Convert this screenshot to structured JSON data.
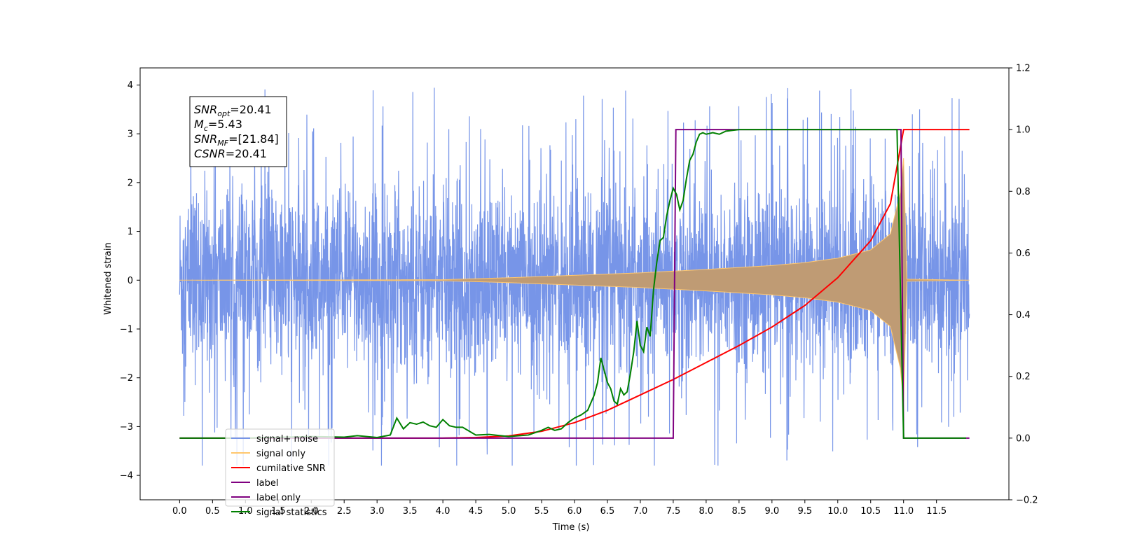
{
  "chart_data": {
    "type": "line",
    "title": "",
    "xlabel": "Time (s)",
    "ylabel": "Whitened strain",
    "y2label": "",
    "xlim": [
      -0.6,
      12.6
    ],
    "ylim": [
      -4.5,
      4.35
    ],
    "y2lim": [
      -0.2,
      1.2
    ],
    "xticks": [
      "0.0",
      "0.5",
      "1.0",
      "1.5",
      "2.0",
      "2.5",
      "3.0",
      "3.5",
      "4.0",
      "4.5",
      "5.0",
      "5.5",
      "6.0",
      "6.5",
      "7.0",
      "7.5",
      "8.0",
      "8.5",
      "9.0",
      "9.5",
      "10.0",
      "10.5",
      "11.0",
      "11.5"
    ],
    "yticks": [
      "4",
      "3",
      "2",
      "1",
      "0",
      "−1",
      "−2",
      "−3",
      "−4"
    ],
    "y2ticks": [
      "1.2",
      "1.0",
      "0.8",
      "0.6",
      "0.4",
      "0.2",
      "0.0",
      "−0.2"
    ],
    "grid": false,
    "legend_position": "bottom-left",
    "stats_box": {
      "lines": [
        {
          "sym": "SNR",
          "sub": "opt",
          "val": "=20.41"
        },
        {
          "sym": "M",
          "sub": "c",
          "val": "=5.43"
        },
        {
          "sym": "SNR",
          "sub": "MF",
          "val": "=[21.84]"
        },
        {
          "sym": "CSNR",
          "sub": "",
          "val": "=20.41"
        }
      ]
    },
    "series": [
      {
        "name": "signal+ noise",
        "axis": "left",
        "color": "#7795e8",
        "x_range": [
          0.0,
          12.0
        ],
        "noise_envelope": {
          "std": 0.95,
          "peak_min": -3.8,
          "peak_max": 3.95
        },
        "chirp_merger_time": 11.0
      },
      {
        "name": "signal only",
        "axis": "left",
        "color": "#ffc76e",
        "x_range": [
          0.0,
          12.0
        ],
        "amplitude_envelope": [
          [
            0.0,
            0.0
          ],
          [
            4.0,
            0.01
          ],
          [
            5.0,
            0.05
          ],
          [
            6.0,
            0.1
          ],
          [
            7.0,
            0.15
          ],
          [
            8.0,
            0.22
          ],
          [
            9.0,
            0.3
          ],
          [
            9.5,
            0.36
          ],
          [
            10.0,
            0.45
          ],
          [
            10.5,
            0.62
          ],
          [
            10.8,
            0.95
          ],
          [
            10.95,
            1.8
          ],
          [
            11.0,
            2.5
          ],
          [
            11.05,
            0.02
          ],
          [
            12.0,
            0.0
          ]
        ]
      },
      {
        "name": "cumilative SNR",
        "axis": "right",
        "color": "#ff0000",
        "x": [
          0.0,
          3.0,
          4.0,
          4.5,
          5.0,
          5.5,
          6.0,
          6.5,
          7.0,
          7.5,
          8.0,
          8.5,
          9.0,
          9.5,
          10.0,
          10.5,
          10.8,
          11.0,
          12.0
        ],
        "y": [
          0.0,
          0.0,
          0.0,
          0.002,
          0.007,
          0.022,
          0.05,
          0.09,
          0.14,
          0.19,
          0.245,
          0.3,
          0.36,
          0.43,
          0.52,
          0.64,
          0.76,
          1.0,
          1.0
        ]
      },
      {
        "name": "label only",
        "axis": "right",
        "color": "#800080",
        "x": [
          0.0,
          7.5,
          7.54,
          10.96,
          11.0,
          12.0
        ],
        "y": [
          0.0,
          0.0,
          1.0,
          1.0,
          0.0,
          0.0
        ]
      },
      {
        "name": "signal statistics",
        "axis": "right",
        "color": "#008000",
        "x": [
          0.0,
          1.0,
          2.0,
          2.5,
          2.7,
          3.0,
          3.2,
          3.3,
          3.4,
          3.5,
          3.6,
          3.7,
          3.8,
          3.9,
          4.0,
          4.1,
          4.2,
          4.3,
          4.5,
          4.7,
          5.0,
          5.3,
          5.5,
          5.6,
          5.7,
          5.8,
          5.9,
          6.0,
          6.1,
          6.2,
          6.3,
          6.35,
          6.4,
          6.45,
          6.5,
          6.55,
          6.6,
          6.65,
          6.7,
          6.75,
          6.8,
          6.85,
          6.9,
          6.95,
          7.0,
          7.05,
          7.1,
          7.15,
          7.2,
          7.25,
          7.3,
          7.35,
          7.4,
          7.45,
          7.5,
          7.55,
          7.6,
          7.65,
          7.7,
          7.75,
          7.8,
          7.85,
          7.9,
          7.95,
          8.0,
          8.1,
          8.2,
          8.3,
          8.5,
          8.7,
          9.0,
          10.0,
          10.9,
          10.95,
          11.0,
          11.05,
          11.5,
          11.95
        ],
        "y": [
          0.0,
          0.0,
          0.005,
          0.003,
          0.008,
          0.002,
          0.01,
          0.065,
          0.03,
          0.05,
          0.045,
          0.052,
          0.04,
          0.035,
          0.06,
          0.04,
          0.035,
          0.035,
          0.01,
          0.012,
          0.005,
          0.01,
          0.025,
          0.035,
          0.025,
          0.03,
          0.05,
          0.065,
          0.075,
          0.09,
          0.14,
          0.18,
          0.26,
          0.22,
          0.18,
          0.16,
          0.12,
          0.11,
          0.16,
          0.14,
          0.15,
          0.21,
          0.28,
          0.38,
          0.3,
          0.28,
          0.36,
          0.33,
          0.48,
          0.57,
          0.64,
          0.65,
          0.72,
          0.77,
          0.81,
          0.79,
          0.74,
          0.77,
          0.84,
          0.9,
          0.92,
          0.96,
          0.985,
          0.99,
          0.985,
          0.99,
          0.985,
          0.995,
          1.0,
          1.0,
          1.0,
          1.0,
          1.0,
          0.5,
          0.0,
          0.0,
          0.0,
          0.0
        ]
      }
    ],
    "legend": [
      {
        "label": "signal+ noise",
        "color": "#7795e8"
      },
      {
        "label": "signal only",
        "color": "#ffc76e"
      },
      {
        "label": "cumilative SNR",
        "color": "#ff0000"
      },
      {
        "label": "label",
        "color": "#800080"
      },
      {
        "label": "label only",
        "color": "#800080"
      },
      {
        "label": "signal statistics",
        "color": "#008000"
      }
    ]
  }
}
